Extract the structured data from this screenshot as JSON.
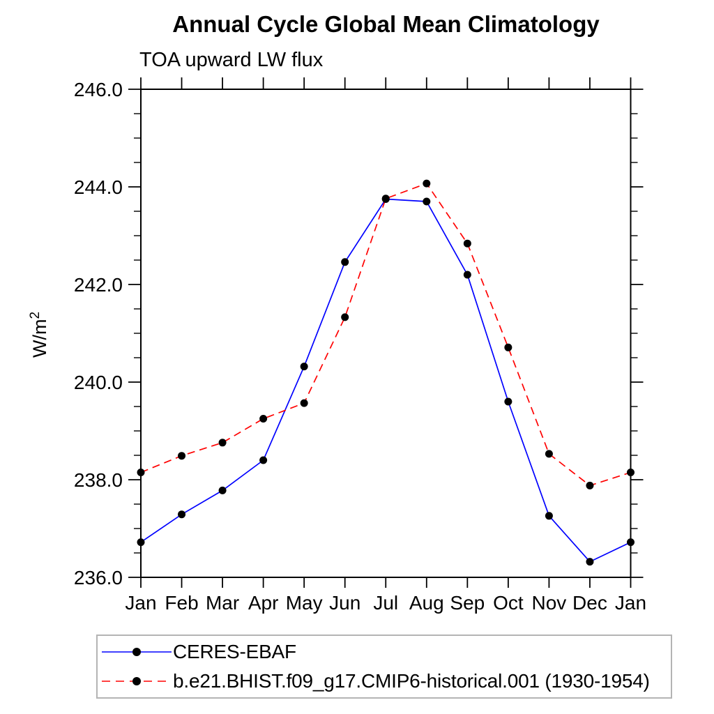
{
  "header": {
    "title": "Annual Cycle Global Mean Climatology",
    "subtitle": "TOA upward LW flux"
  },
  "y_axis": {
    "label_base": "W/m",
    "label_exponent": "2"
  },
  "legend": {
    "entries": [
      {
        "label": "CERES-EBAF",
        "color": "#0000ff",
        "style": "solid"
      },
      {
        "label": "b.e21.BHIST.f09_g17.CMIP6-historical.001 (1930-1954)",
        "color": "#ff0000",
        "style": "dashed"
      }
    ]
  },
  "chart_data": {
    "type": "line",
    "title": "Annual Cycle Global Mean Climatology",
    "subtitle": "TOA upward LW flux",
    "ylabel": "W/m^2",
    "categories": [
      "Jan",
      "Feb",
      "Mar",
      "Apr",
      "May",
      "Jun",
      "Jul",
      "Aug",
      "Sep",
      "Oct",
      "Nov",
      "Dec",
      "Jan"
    ],
    "ylim": [
      236.0,
      246.0
    ],
    "ytick_major_interval": 2.0,
    "ytick_minor_interval": 0.5,
    "ytick_labels": [
      "236.0",
      "238.0",
      "240.0",
      "242.0",
      "244.0",
      "246.0"
    ],
    "grid": false,
    "legend_position": "below-left",
    "marker": "filled-circle",
    "marker_color": "#000000",
    "series": [
      {
        "name": "CERES-EBAF",
        "color": "#0000ff",
        "line_style": "solid",
        "values": [
          236.72,
          237.29,
          237.78,
          238.4,
          240.32,
          242.46,
          243.75,
          243.7,
          242.2,
          239.6,
          237.26,
          236.32,
          236.72
        ]
      },
      {
        "name": "b.e21.BHIST.f09_g17.CMIP6-historical.001 (1930-1954)",
        "color": "#ff0000",
        "line_style": "dashed",
        "values": [
          238.15,
          238.49,
          238.76,
          239.25,
          239.57,
          241.33,
          243.76,
          244.07,
          242.84,
          240.71,
          238.53,
          237.88,
          238.15
        ]
      }
    ]
  }
}
